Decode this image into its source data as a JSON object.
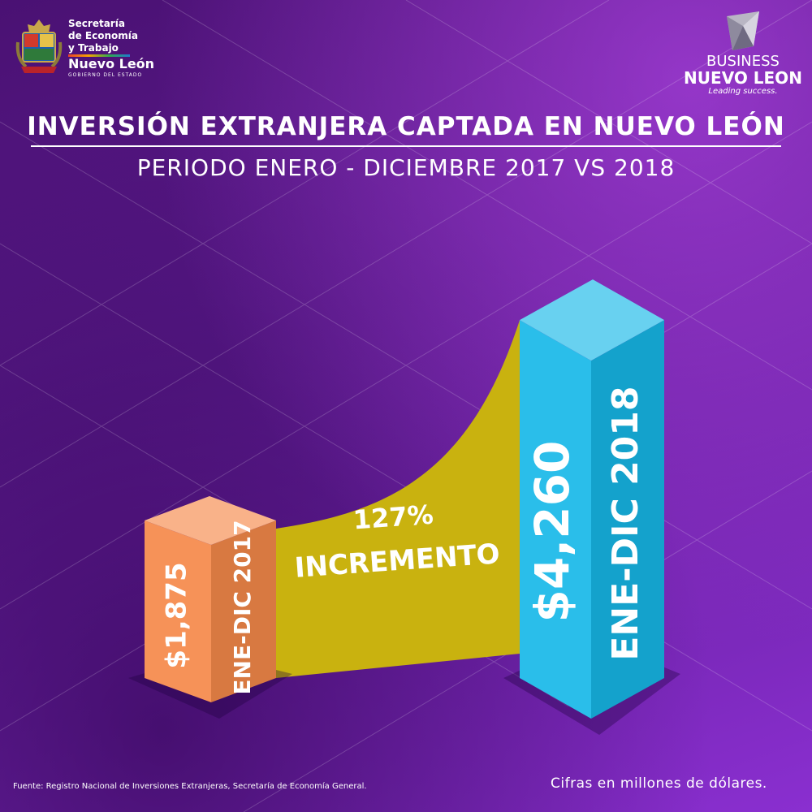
{
  "header": {
    "gov_logo": {
      "line1": "Secretaría",
      "line2": "de Economía",
      "line3": "y Trabajo",
      "line4": "Nuevo León",
      "line5": "GOBIERNO DEL ESTADO"
    },
    "business_logo": {
      "line1": "BUSINESS",
      "line2": "NUEVO LEON",
      "tagline": "Leading success."
    }
  },
  "footer": {
    "source": "Fuente: Registro Nacional de Inversiones Extranjeras, Secretaría de Economía General.",
    "units": "Cifras en millones de dólares."
  },
  "colors": {
    "bar_2017": "#f5894a",
    "bar_2018": "#17b8e8",
    "increase_band": "#c9b20f",
    "background": "#5a1a8c"
  },
  "chart_data": {
    "type": "bar",
    "title": "INVERSIÓN EXTRANJERA CAPTADA EN NUEVO LEÓN",
    "subtitle": "PERIODO ENERO - DICIEMBRE 2017 VS 2018",
    "categories": [
      "ENE-DIC 2017",
      "ENE-DIC 2018"
    ],
    "values": [
      1875,
      4260
    ],
    "value_labels": [
      "$1,875",
      "$4,260"
    ],
    "annotation": {
      "percent": "127%",
      "label": "INCREMENTO"
    },
    "xlabel": "",
    "ylabel": "",
    "grid": false
  }
}
